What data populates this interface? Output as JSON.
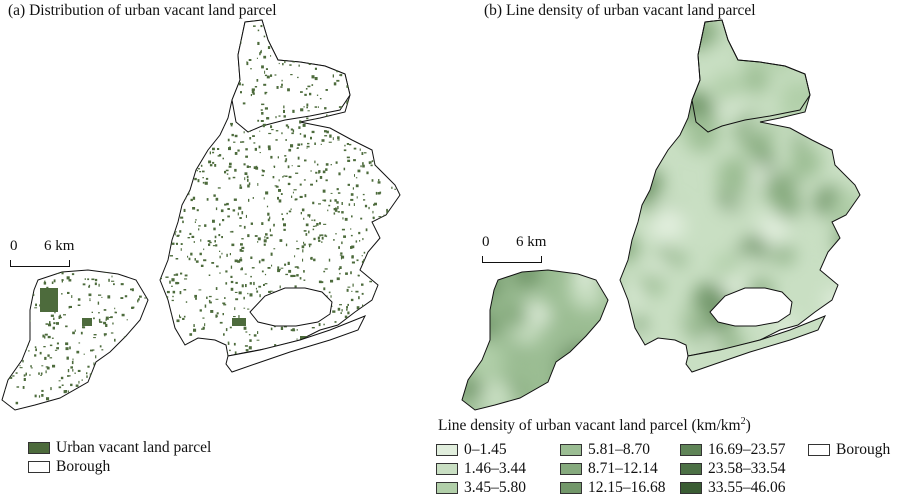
{
  "panel_a": {
    "title": "(a) Distribution of urban vacant land parcel",
    "scale": {
      "zero": "0",
      "distance": "6 km"
    },
    "legend": [
      {
        "label": "Urban vacant land parcel",
        "color": "#4d6b3c"
      },
      {
        "label": "Borough",
        "color": "#ffffff"
      }
    ]
  },
  "panel_b": {
    "title": "(b) Line density of urban vacant land parcel",
    "scale": {
      "zero": "0",
      "distance": "6 km"
    },
    "legend_title": "Line density of urban vacant land parcel (km/km",
    "legend_title_sup": "2",
    "legend_title_close": ")",
    "classes": [
      {
        "label": "0–1.45",
        "color": "#e1eedd"
      },
      {
        "label": "1.46–3.44",
        "color": "#c9dfc3"
      },
      {
        "label": "3.45–5.80",
        "color": "#b1cfa9"
      },
      {
        "label": "5.81–8.70",
        "color": "#9bbd93"
      },
      {
        "label": "8.71–12.14",
        "color": "#86aa7e"
      },
      {
        "label": "12.15–16.68",
        "color": "#72976a"
      },
      {
        "label": "16.69–23.57",
        "color": "#5f8457"
      },
      {
        "label": "23.58–33.54",
        "color": "#4c7045"
      },
      {
        "label": "33.55–46.06",
        "color": "#3a5c33"
      }
    ],
    "borough_label": "Borough"
  }
}
